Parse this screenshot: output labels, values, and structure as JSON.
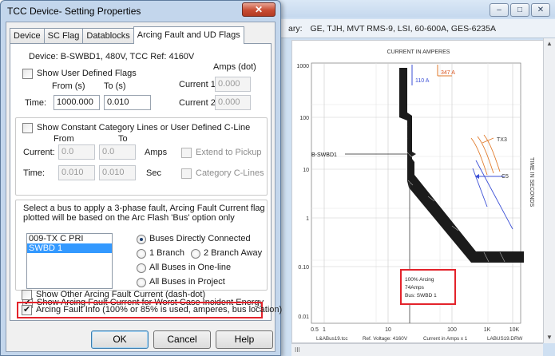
{
  "bgwindow": {
    "header_prefix": "ary:",
    "header_info": "GE, TJH, MVT RMS-9, LSI, 60-600A, GES-6235A",
    "plot": {
      "top_title": "CURRENT IN AMPERES",
      "right_title": "TIME IN SECONDS",
      "y_ticks": [
        "1000",
        "100",
        "10",
        "1",
        "0.10",
        "0.01"
      ],
      "x_ticks": [
        "0.5",
        "1",
        "10",
        "100",
        "1K",
        "10K"
      ],
      "footer_file": "L&ABus19.tcc",
      "footer_ref": "Ref. Voltage: 4160V",
      "footer_current": "Current in Amps x 1",
      "footer_drw": "LABUS19.DRW",
      "label_347a": "347 A",
      "label_110a": "110 A",
      "label_bswbd1": "B-SWBD1",
      "label_tx3": "TX3",
      "label_c5": "C5",
      "info_line1": "100% Arcing",
      "info_line2": "74Amps",
      "info_line3": "Bus: SWBD 1",
      "highlight_color": "#e3232b"
    },
    "scroll_left_glyph": "III"
  },
  "dialog": {
    "title": "TCC Device- Setting Properties",
    "close_glyph": "✕",
    "tabs": [
      {
        "label": "Device"
      },
      {
        "label": "SC Flag"
      },
      {
        "label": "Datablocks"
      },
      {
        "label": "Arcing Fault and UD Flags"
      }
    ],
    "device_line": "Device: B-SWBD1, 480V, TCC Ref: 4160V",
    "ud_flags": {
      "checkbox_label": "Show User Defined Flags",
      "amps_dot": "Amps (dot)",
      "from_label": "From (s)",
      "to_label": "To (s)",
      "time_label": "Time:",
      "time_from": "1000.000",
      "time_to": "0.010",
      "current1_label": "Current 1:",
      "current1_value": "0.000",
      "current2_label": "Current 2:",
      "current2_value": "0.000"
    },
    "c_line": {
      "checkbox_label": "Show Constant Category Lines or User Defined C-Line",
      "from_label": "From",
      "to_label": "To",
      "current_label": "Current:",
      "current_from": "0.0",
      "current_to": "0.0",
      "amps_label": "Amps",
      "extend_label": "Extend to Pickup",
      "time_label": "Time:",
      "time_from": "0.010",
      "time_to": "0.010",
      "sec_label": "Sec",
      "category_label": "Category C-Lines"
    },
    "bus_select": {
      "instruction_line1": "Select a bus to apply a 3-phase fault, Arcing Fault Current flag",
      "instruction_line2": "plotted will be based on the Arc Flash 'Bus' option only",
      "buses": [
        "009-TX C PRI",
        "SWBD 1"
      ],
      "selected_bus": "SWBD 1",
      "options": {
        "direct": "Buses Directly Connected",
        "branch1": "1 Branch",
        "branch2": "2 Branch Away",
        "oneline": "All Buses in One-line",
        "project": "All Buses in Project"
      },
      "selected_option": "Buses Directly Connected"
    },
    "arcing": {
      "worst_case_label": "Show Arcing Fault Current for Worst Case Incident Energy",
      "worst_case_checked": true,
      "other_label": "Show Other Arcing Fault Current (dash-dot)",
      "other_checked": false,
      "info_label": "Arcing Fault Info (100% or 85% is used, amperes, bus location)",
      "info_checked": true
    },
    "buttons": {
      "ok": "OK",
      "cancel": "Cancel",
      "help": "Help"
    }
  }
}
